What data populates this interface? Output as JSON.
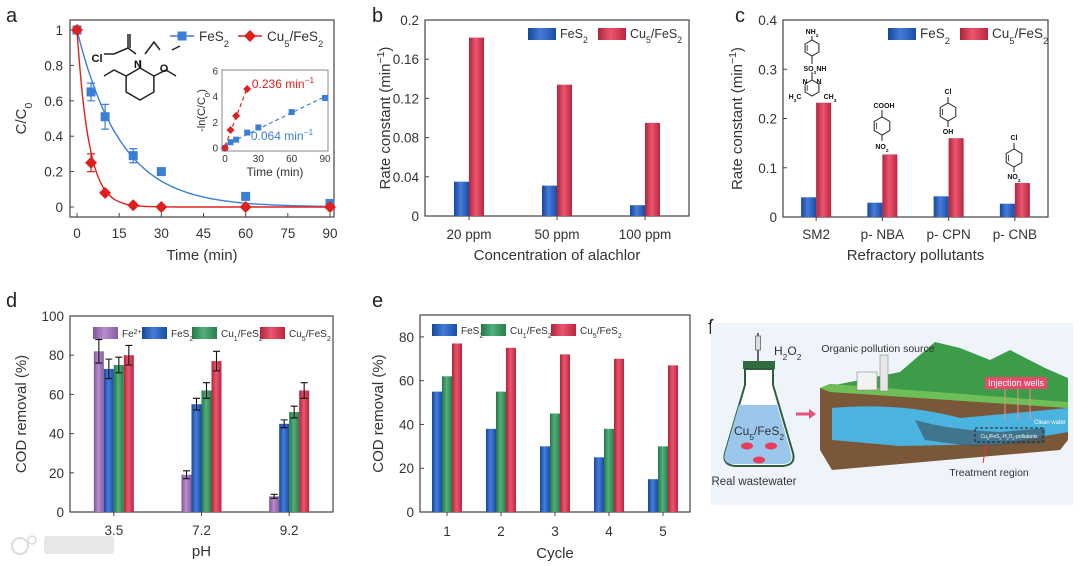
{
  "figure": {
    "panel_labels": [
      "a",
      "b",
      "c",
      "d",
      "e",
      "f"
    ]
  },
  "colors": {
    "fes2": "#1d5fcf",
    "cu5": "#e8304f",
    "cu1": "#2f9e5e",
    "fe2": "#a873c4",
    "line_fes2": "#3a7fd5",
    "line_cu5": "#e0201f"
  },
  "chart_data": [
    {
      "type": "line",
      "panel": "a",
      "title": "",
      "xlabel": "Time (min)",
      "ylabel": "C/C_{0}",
      "xlim": [
        0,
        90
      ],
      "ylim": [
        0,
        1
      ],
      "xticks": [
        0,
        15,
        30,
        45,
        60,
        75,
        90
      ],
      "yticks": [
        0,
        0.2,
        0.4,
        0.6,
        0.8,
        1
      ],
      "ytick_labels": [
        "0",
        "0.2",
        "0.4",
        "0.6",
        "0.8",
        "1"
      ],
      "legend": "top-right",
      "series": [
        {
          "name": "FeS_{2}",
          "marker": "square",
          "rate": 0.064,
          "x": [
            0,
            5,
            10,
            20,
            30,
            60,
            90
          ],
          "y": [
            1,
            0.65,
            0.51,
            0.29,
            0.2,
            0.06,
            0.02
          ],
          "err": [
            0,
            0.05,
            0.07,
            0.04,
            0,
            0,
            0
          ]
        },
        {
          "name": "Cu_{5}/FeS_{2}",
          "marker": "diamond",
          "rate": 0.236,
          "x": [
            0,
            5,
            10,
            20,
            30,
            60,
            90
          ],
          "y": [
            1,
            0.25,
            0.08,
            0.01,
            0,
            0,
            0
          ],
          "err": [
            0,
            0.05,
            0,
            0,
            0,
            0,
            0
          ]
        }
      ],
      "structure_labels": [
        "Cl",
        "N",
        "O"
      ],
      "inset": {
        "xlabel": "Time (min)",
        "ylabel": "-ln(C/C_{0})",
        "xlim": [
          0,
          90
        ],
        "ylim": [
          0,
          6
        ],
        "xticks": [
          0,
          30,
          60,
          90
        ],
        "yticks": [
          0,
          2,
          4,
          6
        ],
        "series": [
          {
            "name": "FeS_{2}",
            "x": [
              0,
              5,
              10,
              20,
              30,
              60,
              90
            ],
            "y": [
              0,
              0.45,
              0.65,
              1.2,
              1.6,
              2.8,
              3.9
            ],
            "fit_label": "0.064 min^{−1}"
          },
          {
            "name": "Cu_{5}/FeS_{2}",
            "x": [
              0,
              5,
              10,
              20
            ],
            "y": [
              0,
              1.4,
              2.5,
              4.6
            ],
            "fit_label": "0.236 min^{−1}"
          }
        ]
      }
    },
    {
      "type": "bar",
      "panel": "b",
      "title": "",
      "xlabel": "Concentration of alachlor",
      "ylabel": "Rate constant (min^{−1})",
      "ylim": [
        0,
        0.2
      ],
      "yticks": [
        0,
        0.04,
        0.08,
        0.12,
        0.16,
        0.2
      ],
      "ytick_labels": [
        "0",
        "0.04",
        "0.08",
        "0.12",
        "0.16",
        "0.2"
      ],
      "categories": [
        "20 ppm",
        "50 ppm",
        "100 ppm"
      ],
      "legend": "top-right",
      "series": [
        {
          "name": "FeS_{2}",
          "values": [
            0.035,
            0.031,
            0.011
          ]
        },
        {
          "name": "Cu_{5}/FeS_{2}",
          "values": [
            0.182,
            0.134,
            0.095
          ]
        }
      ]
    },
    {
      "type": "bar",
      "panel": "c",
      "title": "",
      "xlabel": "Refractory pollutants",
      "ylabel": "Rate constant (min^{−1})",
      "ylim": [
        0,
        0.4
      ],
      "yticks": [
        0,
        0.1,
        0.2,
        0.3,
        0.4
      ],
      "ytick_labels": [
        "0",
        "0.1",
        "0.2",
        "0.3",
        "0.4"
      ],
      "categories": [
        "SM2",
        "p- NBA",
        "p- CPN",
        "p- CNB"
      ],
      "legend": "top-right",
      "series": [
        {
          "name": "FeS_{2}",
          "values": [
            0.04,
            0.029,
            0.042,
            0.027
          ]
        },
        {
          "name": "Cu_{5}/FeS_{2}",
          "values": [
            0.232,
            0.127,
            0.16,
            0.069
          ]
        }
      ],
      "structure_labels": {
        "SM2": [
          "NH_{2}",
          "SO_{2}NH",
          "N",
          "N",
          "H_{3}C",
          "CH_{3}"
        ],
        "NBA": [
          "COOH",
          "NO_{2}"
        ],
        "CPN": [
          "Cl",
          "OH"
        ],
        "CNB": [
          "Cl",
          "NO_{2}"
        ]
      }
    },
    {
      "type": "bar",
      "panel": "d",
      "title": "",
      "xlabel": "pH",
      "ylabel": "COD removal (%)",
      "ylim": [
        0,
        100
      ],
      "yticks": [
        0,
        20,
        40,
        60,
        80,
        100
      ],
      "ytick_labels": [
        "0",
        "20",
        "40",
        "60",
        "80",
        "100"
      ],
      "categories": [
        "3.5",
        "7.2",
        "9.2"
      ],
      "legend": "top",
      "series": [
        {
          "name": "Fe^{2+}",
          "values": [
            82,
            19,
            8
          ],
          "err": [
            6,
            2,
            1
          ]
        },
        {
          "name": "FeS_{2}",
          "values": [
            73,
            55,
            45
          ],
          "err": [
            5,
            3,
            2
          ]
        },
        {
          "name": "Cu_{1}/FeS_{2}",
          "values": [
            75,
            62,
            51
          ],
          "err": [
            4,
            4,
            3
          ]
        },
        {
          "name": "Cu_{5}/FeS_{2}",
          "values": [
            80,
            77,
            62
          ],
          "err": [
            5,
            5,
            4
          ]
        }
      ]
    },
    {
      "type": "bar",
      "panel": "e",
      "title": "",
      "xlabel": "Cycle",
      "ylabel": "COD removal (%)",
      "ylim": [
        0,
        90
      ],
      "yticks": [
        0,
        20,
        40,
        60,
        80
      ],
      "ytick_labels": [
        "0",
        "20",
        "40",
        "60",
        "80"
      ],
      "categories": [
        "1",
        "2",
        "3",
        "4",
        "5"
      ],
      "legend": "top-left",
      "series": [
        {
          "name": "FeS_{2}",
          "values": [
            55,
            38,
            30,
            25,
            15
          ]
        },
        {
          "name": "Cu_{1}/FeS_{2}",
          "values": [
            62,
            55,
            45,
            38,
            30
          ]
        },
        {
          "name": "Cu_{5}/FeS_{2}",
          "values": [
            77,
            75,
            72,
            70,
            67
          ]
        }
      ]
    }
  ],
  "illustration_f": {
    "oxidant": "H_{2}O_{2}",
    "catalyst": "Cu_{5}/FeS_{2}",
    "flask_caption": "Real wastewater",
    "pollution_source": "Organic pollution source",
    "injection_wells": "Injection wells",
    "clean_water": "Clean water",
    "plume": "Cu_{5}/FeS_{2}-H_{2}O_{2}-pollutants",
    "treatment_region": "Treatment region"
  },
  "watermark": "大数跨境"
}
